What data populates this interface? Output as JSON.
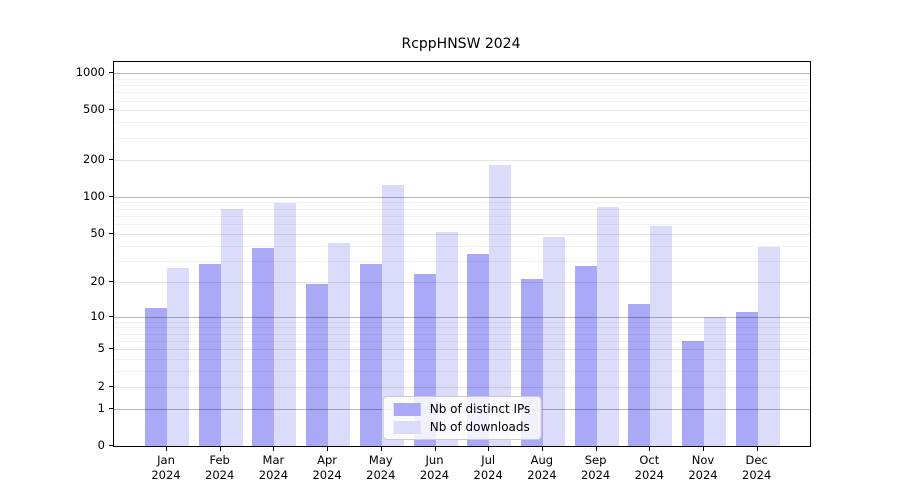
{
  "window": {
    "background": "#ffffff"
  },
  "chart_data": {
    "type": "bar",
    "title": "RcppHNSW 2024",
    "categories": [
      "Jan",
      "Feb",
      "Mar",
      "Apr",
      "May",
      "Jun",
      "Jul",
      "Aug",
      "Sep",
      "Oct",
      "Nov",
      "Dec"
    ],
    "x_tick_year": "2024",
    "series": [
      {
        "name": "Nb of distinct IPs",
        "color": "#a9a9f8",
        "values": [
          12,
          28,
          38,
          19,
          28,
          23,
          34,
          21,
          27,
          13,
          6,
          11
        ]
      },
      {
        "name": "Nb of downloads",
        "color": "#dbdbfa",
        "values": [
          26,
          80,
          89,
          42,
          125,
          52,
          181,
          47,
          83,
          58,
          10,
          39
        ]
      }
    ],
    "y_scale": "log1p",
    "ylim": [
      0,
      1225
    ],
    "y_ticks_labeled": [
      0,
      1,
      2,
      5,
      10,
      20,
      50,
      100,
      200,
      500,
      1000
    ],
    "y_ticks_minor": [
      3,
      4,
      6,
      7,
      8,
      9,
      30,
      40,
      60,
      70,
      80,
      90,
      300,
      400,
      600,
      700,
      800,
      900
    ],
    "y_ticks_decade": [
      1,
      10,
      100,
      1000
    ],
    "grid": "horizontal",
    "legend": {
      "position": "lower center",
      "labels": [
        "Nb of distinct IPs",
        "Nb of downloads"
      ]
    },
    "colors": {
      "axis": "#000000",
      "grid_decade": "rgba(0,0,0,0.28)",
      "grid_labeled": "rgba(0,0,0,0.10)",
      "grid_minor": "rgba(0,0,0,0.055)"
    }
  }
}
